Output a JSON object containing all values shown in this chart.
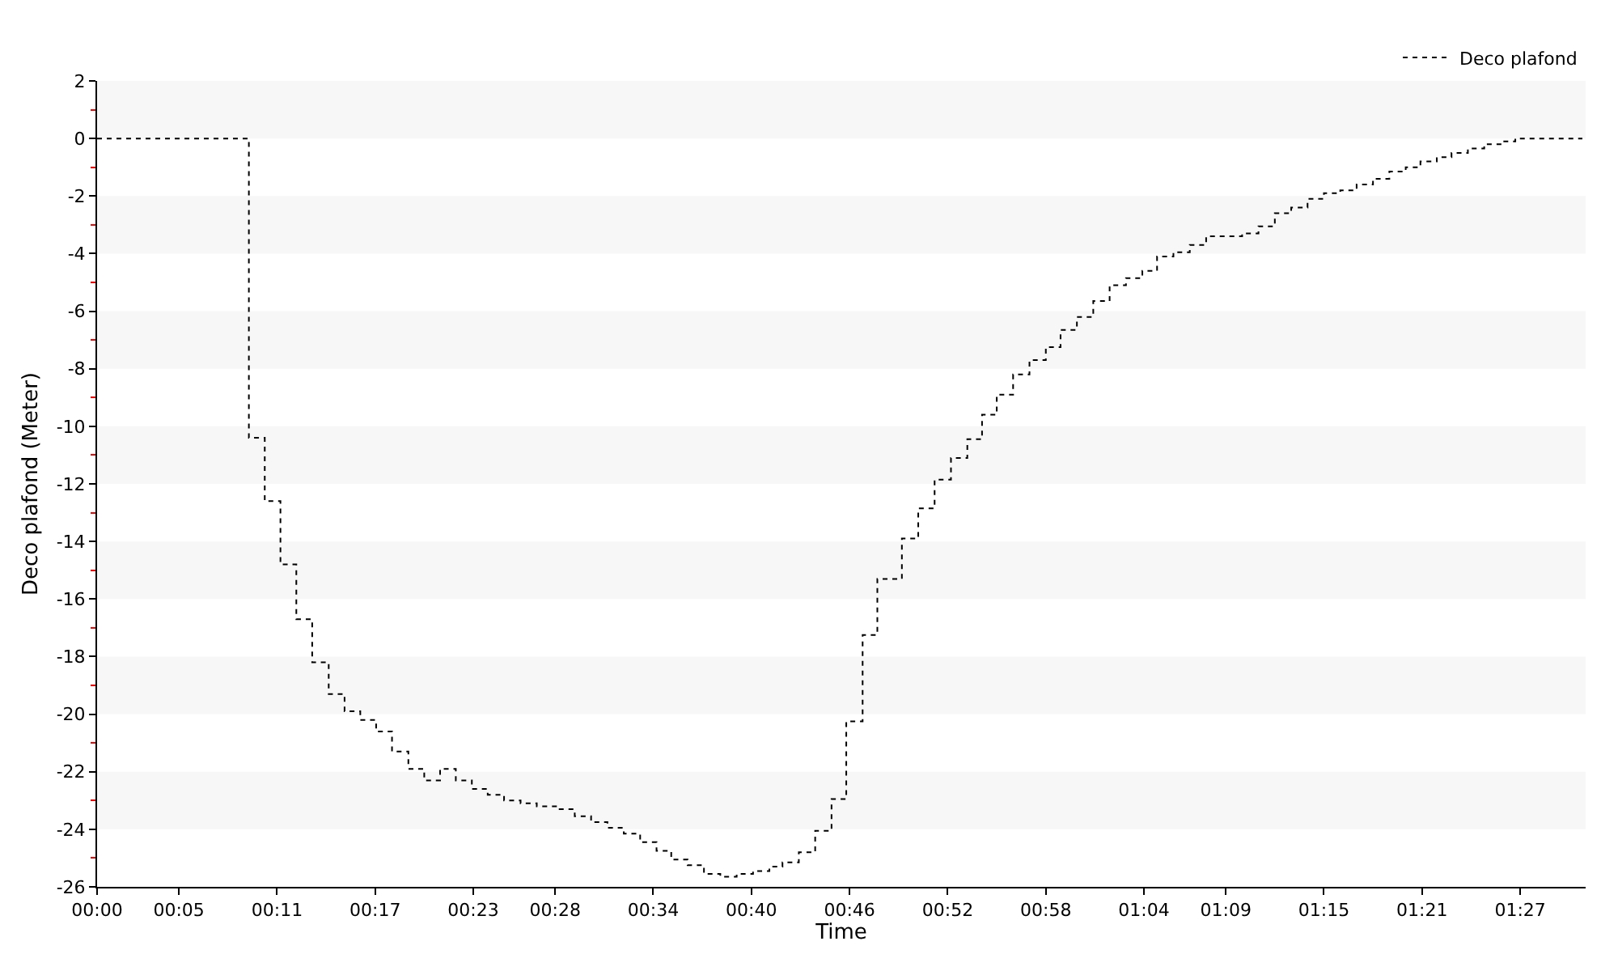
{
  "chart_data": {
    "type": "step",
    "xlabel": "Time",
    "ylabel": "Deco plafond (Meter)",
    "x": [
      0,
      9.28,
      10.25,
      11.21,
      12.18,
      13.15,
      14.16,
      15.13,
      16.09,
      17.06,
      18.03,
      19.03,
      20.0,
      20.97,
      21.93,
      22.91,
      23.88,
      24.88,
      25.89,
      26.88,
      28.2,
      29.2,
      30.2,
      31.2,
      32.2,
      33.2,
      34.2,
      35.1,
      36.1,
      37.1,
      38.1,
      39.1,
      40.1,
      41.1,
      41.9,
      42.9,
      43.9,
      44.9,
      45.8,
      46.8,
      47.7,
      49.2,
      50.2,
      51.2,
      52.2,
      53.2,
      54.1,
      55.0,
      56.0,
      57.0,
      58.0,
      58.9,
      59.9,
      60.9,
      61.9,
      62.9,
      63.9,
      64.8,
      65.8,
      66.8,
      67.8,
      70.0,
      71.0,
      72.0,
      73.0,
      74.0,
      75.0,
      76.0,
      77.0,
      78.0,
      79.0,
      80.0,
      80.9,
      81.9,
      82.8,
      83.8,
      84.8,
      85.8,
      86.7,
      90.8
    ],
    "series": [
      {
        "name": "Deco plafond",
        "color": "#000000",
        "values": [
          0,
          -10.4,
          -12.6,
          -14.8,
          -16.7,
          -18.2,
          -19.3,
          -19.9,
          -20.2,
          -20.6,
          -21.3,
          -21.9,
          -22.3,
          -21.9,
          -22.3,
          -22.6,
          -22.8,
          -23.0,
          -23.1,
          -23.2,
          -23.3,
          -23.55,
          -23.75,
          -23.95,
          -24.15,
          -24.45,
          -24.75,
          -25.05,
          -25.25,
          -25.55,
          -25.65,
          -25.55,
          -25.45,
          -25.3,
          -25.15,
          -24.8,
          -24.05,
          -22.95,
          -20.25,
          -17.25,
          -15.3,
          -13.9,
          -12.85,
          -11.85,
          -11.1,
          -10.45,
          -9.6,
          -8.9,
          -8.2,
          -7.7,
          -7.25,
          -6.65,
          -6.2,
          -5.65,
          -5.1,
          -4.85,
          -4.6,
          -4.1,
          -3.95,
          -3.7,
          -3.4,
          -3.3,
          -3.05,
          -2.6,
          -2.4,
          -2.1,
          -1.9,
          -1.8,
          -1.6,
          -1.4,
          -1.15,
          -1.0,
          -0.8,
          -0.65,
          -0.5,
          -0.35,
          -0.2,
          -0.1,
          0,
          0
        ]
      }
    ],
    "xlim": [
      0,
      91
    ],
    "xticks": [
      {
        "value": 0,
        "label": "00:00"
      },
      {
        "value": 5,
        "label": "00:05"
      },
      {
        "value": 11,
        "label": "00:11"
      },
      {
        "value": 17,
        "label": "00:17"
      },
      {
        "value": 23,
        "label": "00:23"
      },
      {
        "value": 28,
        "label": "00:28"
      },
      {
        "value": 34,
        "label": "00:34"
      },
      {
        "value": 40,
        "label": "00:40"
      },
      {
        "value": 46,
        "label": "00:46"
      },
      {
        "value": 52,
        "label": "00:52"
      },
      {
        "value": 58,
        "label": "00:58"
      },
      {
        "value": 64,
        "label": "01:04"
      },
      {
        "value": 69,
        "label": "01:09"
      },
      {
        "value": 75,
        "label": "01:15"
      },
      {
        "value": 81,
        "label": "01:21"
      },
      {
        "value": 87,
        "label": "01:27"
      }
    ],
    "bands": [
      {
        "axis": "y",
        "from": 0,
        "to": 2,
        "color": "#f7f7f7"
      },
      {
        "axis": "y",
        "from": -4,
        "to": -2,
        "color": "#f7f7f7"
      },
      {
        "axis": "y",
        "from": -8,
        "to": -6,
        "color": "#f7f7f7"
      },
      {
        "axis": "y",
        "from": -12,
        "to": -10,
        "color": "#f7f7f7"
      },
      {
        "axis": "y",
        "from": -16,
        "to": -14,
        "color": "#f7f7f7"
      },
      {
        "axis": "y",
        "from": -20,
        "to": -18,
        "color": "#f7f7f7"
      },
      {
        "axis": "y",
        "from": -24,
        "to": -22,
        "color": "#f7f7f7"
      }
    ],
    "ylim": [
      -26,
      2
    ],
    "yticks": [
      -26,
      -24,
      -22,
      -20,
      -18,
      -16,
      -14,
      -12,
      -10,
      -8,
      -6,
      -4,
      -2,
      0,
      2
    ],
    "legend": "top right",
    "line_style": "dotted",
    "marker": "none"
  }
}
